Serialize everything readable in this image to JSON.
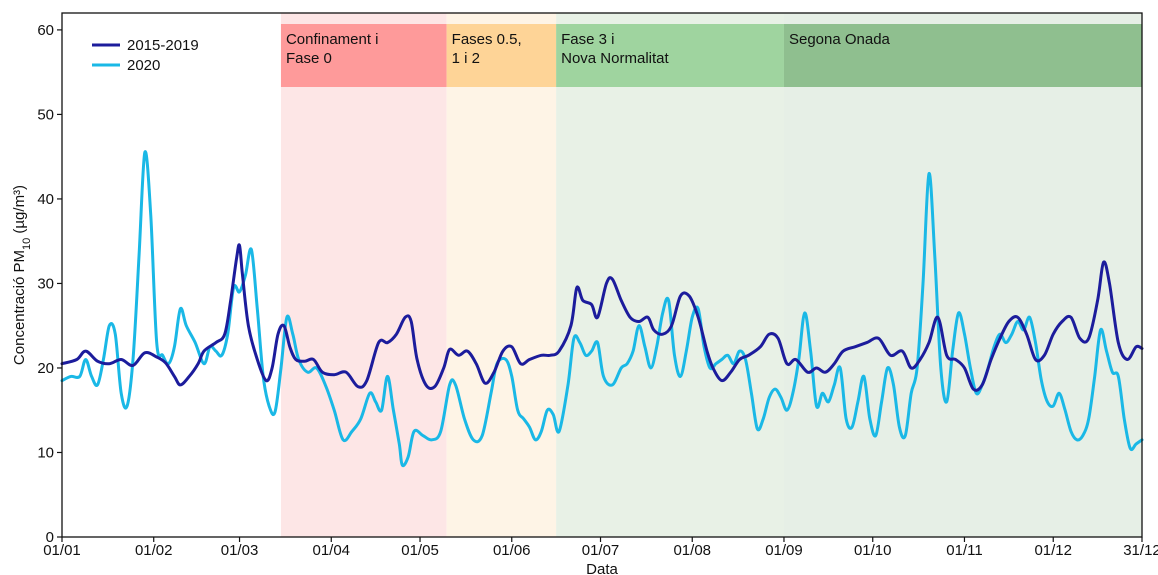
{
  "chart_data": {
    "type": "line",
    "title": "",
    "xlabel": "Data",
    "ylabel_main": "Concentració PM",
    "ylabel_sub": "10",
    "ylabel_unit": " (µg/m³)",
    "xlim": [
      0,
      365
    ],
    "ylim": [
      0,
      62
    ],
    "x_ticks": [
      {
        "day": 0,
        "label": "01/01"
      },
      {
        "day": 31,
        "label": "01/02"
      },
      {
        "day": 60,
        "label": "01/03"
      },
      {
        "day": 91,
        "label": "01/04"
      },
      {
        "day": 121,
        "label": "01/05"
      },
      {
        "day": 152,
        "label": "01/06"
      },
      {
        "day": 182,
        "label": "01/07"
      },
      {
        "day": 213,
        "label": "01/08"
      },
      {
        "day": 244,
        "label": "01/09"
      },
      {
        "day": 274,
        "label": "01/10"
      },
      {
        "day": 305,
        "label": "01/11"
      },
      {
        "day": 335,
        "label": "01/12"
      },
      {
        "day": 365,
        "label": "31/12"
      }
    ],
    "y_ticks": [
      0,
      10,
      20,
      30,
      40,
      50,
      60
    ],
    "legend_position": "top-left",
    "phases": [
      {
        "label_lines": [
          "Confinament i",
          "Fase 0"
        ],
        "start": 74,
        "end": 130,
        "band_color": "#fe9a9a",
        "fill_color": "#fde6e6"
      },
      {
        "label_lines": [
          "Fases 0.5,",
          "1 i 2"
        ],
        "start": 130,
        "end": 167,
        "band_color": "#fed497",
        "fill_color": "#fef4e6"
      },
      {
        "label_lines": [
          "Fase 3 i",
          "Nova Normalitat"
        ],
        "start": 167,
        "end": 244,
        "band_color": "#9fd49f",
        "fill_color": "#e8f1e6"
      },
      {
        "label_lines": [
          "Segona Onada"
        ],
        "start": 244,
        "end": 365,
        "band_color": "#8fbf8f",
        "fill_color": "#e6efe6"
      }
    ],
    "series": [
      {
        "name": "2015-2019",
        "color": "#1c1c9c",
        "points": [
          [
            0,
            20.5
          ],
          [
            5,
            21
          ],
          [
            8,
            22
          ],
          [
            12,
            20.8
          ],
          [
            16,
            20.5
          ],
          [
            20,
            21
          ],
          [
            24,
            20.3
          ],
          [
            28,
            21.8
          ],
          [
            32,
            21.3
          ],
          [
            35,
            20.6
          ],
          [
            38,
            19
          ],
          [
            40,
            18
          ],
          [
            43,
            19
          ],
          [
            46,
            20.5
          ],
          [
            48,
            22
          ],
          [
            52,
            23
          ],
          [
            55,
            24
          ],
          [
            57,
            28
          ],
          [
            59,
            33
          ],
          [
            60,
            34.5
          ],
          [
            61,
            31
          ],
          [
            63,
            25
          ],
          [
            66,
            21
          ],
          [
            69,
            18.5
          ],
          [
            71,
            20
          ],
          [
            73,
            24
          ],
          [
            75,
            25
          ],
          [
            77,
            22.5
          ],
          [
            79,
            21
          ],
          [
            82,
            20.8
          ],
          [
            85,
            21
          ],
          [
            88,
            19.5
          ],
          [
            92,
            19.2
          ],
          [
            96,
            19.5
          ],
          [
            100,
            17.8
          ],
          [
            103,
            18.5
          ],
          [
            107,
            23
          ],
          [
            110,
            23
          ],
          [
            113,
            24
          ],
          [
            116,
            26
          ],
          [
            118,
            25.5
          ],
          [
            120,
            21
          ],
          [
            123,
            18
          ],
          [
            126,
            17.8
          ],
          [
            129,
            20
          ],
          [
            131,
            22.2
          ],
          [
            134,
            21.5
          ],
          [
            137,
            22
          ],
          [
            140,
            20.5
          ],
          [
            143,
            18.2
          ],
          [
            146,
            19.5
          ],
          [
            149,
            22
          ],
          [
            152,
            22.5
          ],
          [
            155,
            20.5
          ],
          [
            158,
            21
          ],
          [
            162,
            21.5
          ],
          [
            165,
            21.5
          ],
          [
            168,
            22
          ],
          [
            172,
            25
          ],
          [
            174,
            29.5
          ],
          [
            176,
            28
          ],
          [
            179,
            27.5
          ],
          [
            181,
            26
          ],
          [
            184,
            30
          ],
          [
            186,
            30.5
          ],
          [
            189,
            28
          ],
          [
            192,
            26
          ],
          [
            195,
            25.5
          ],
          [
            198,
            26
          ],
          [
            200,
            24.5
          ],
          [
            203,
            24
          ],
          [
            206,
            25
          ],
          [
            209,
            28.5
          ],
          [
            212,
            28.5
          ],
          [
            215,
            26
          ],
          [
            218,
            22
          ],
          [
            220,
            20
          ],
          [
            223,
            18.5
          ],
          [
            226,
            19.5
          ],
          [
            229,
            21
          ],
          [
            232,
            21.5
          ],
          [
            236,
            22.5
          ],
          [
            239,
            24
          ],
          [
            242,
            23.5
          ],
          [
            245,
            20.5
          ],
          [
            248,
            21
          ],
          [
            252,
            19.5
          ],
          [
            255,
            20
          ],
          [
            258,
            19.5
          ],
          [
            261,
            20.5
          ],
          [
            264,
            22
          ],
          [
            268,
            22.5
          ],
          [
            272,
            23
          ],
          [
            276,
            23.5
          ],
          [
            280,
            21.5
          ],
          [
            284,
            22
          ],
          [
            287,
            20
          ],
          [
            290,
            21
          ],
          [
            293,
            23
          ],
          [
            296,
            26
          ],
          [
            299,
            21.5
          ],
          [
            302,
            21
          ],
          [
            305,
            20
          ],
          [
            308,
            17.5
          ],
          [
            311,
            18
          ],
          [
            314,
            21
          ],
          [
            317,
            23.5
          ],
          [
            320,
            25.5
          ],
          [
            323,
            26
          ],
          [
            326,
            24
          ],
          [
            329,
            21
          ],
          [
            332,
            21.5
          ],
          [
            335,
            24
          ],
          [
            338,
            25.5
          ],
          [
            341,
            26
          ],
          [
            344,
            23.5
          ],
          [
            347,
            23.5
          ],
          [
            350,
            28
          ],
          [
            352,
            32.5
          ],
          [
            354,
            30
          ],
          [
            357,
            23
          ],
          [
            360,
            21
          ],
          [
            363,
            22.5
          ],
          [
            365,
            22.3
          ]
        ]
      },
      {
        "name": "2020",
        "color": "#1ab8e6",
        "points": [
          [
            0,
            18.5
          ],
          [
            3,
            19
          ],
          [
            6,
            19
          ],
          [
            8,
            21
          ],
          [
            10,
            19
          ],
          [
            12,
            18
          ],
          [
            14,
            21
          ],
          [
            16,
            25
          ],
          [
            18,
            24
          ],
          [
            20,
            17
          ],
          [
            22,
            15.5
          ],
          [
            24,
            21
          ],
          [
            26,
            33
          ],
          [
            28,
            45.5
          ],
          [
            30,
            38
          ],
          [
            32,
            23
          ],
          [
            34,
            21.5
          ],
          [
            36,
            20.5
          ],
          [
            38,
            22.5
          ],
          [
            40,
            27
          ],
          [
            42,
            25
          ],
          [
            45,
            23
          ],
          [
            48,
            20.5
          ],
          [
            50,
            22.5
          ],
          [
            52,
            22
          ],
          [
            54,
            21.5
          ],
          [
            56,
            24
          ],
          [
            58,
            29.5
          ],
          [
            60,
            29
          ],
          [
            62,
            31
          ],
          [
            64,
            34
          ],
          [
            66,
            27
          ],
          [
            68,
            19
          ],
          [
            70,
            15.5
          ],
          [
            72,
            14.8
          ],
          [
            74,
            20
          ],
          [
            76,
            26
          ],
          [
            78,
            24
          ],
          [
            80,
            21
          ],
          [
            83,
            19.5
          ],
          [
            86,
            20
          ],
          [
            89,
            18
          ],
          [
            92,
            15
          ],
          [
            95,
            11.5
          ],
          [
            98,
            12.5
          ],
          [
            101,
            14
          ],
          [
            104,
            17
          ],
          [
            106,
            16
          ],
          [
            108,
            15
          ],
          [
            110,
            19
          ],
          [
            112,
            15
          ],
          [
            114,
            11
          ],
          [
            115,
            8.5
          ],
          [
            117,
            9.5
          ],
          [
            119,
            12.5
          ],
          [
            122,
            12
          ],
          [
            125,
            11.5
          ],
          [
            128,
            12.5
          ],
          [
            131,
            18
          ],
          [
            133,
            18
          ],
          [
            136,
            14
          ],
          [
            139,
            11.5
          ],
          [
            142,
            12
          ],
          [
            145,
            17
          ],
          [
            147,
            20.5
          ],
          [
            150,
            21
          ],
          [
            152,
            19
          ],
          [
            154,
            15
          ],
          [
            156,
            14
          ],
          [
            158,
            13
          ],
          [
            160,
            11.5
          ],
          [
            162,
            12.5
          ],
          [
            164,
            15
          ],
          [
            166,
            14.5
          ],
          [
            168,
            12.5
          ],
          [
            171,
            18
          ],
          [
            173,
            23.5
          ],
          [
            175,
            23
          ],
          [
            177,
            21.5
          ],
          [
            179,
            22
          ],
          [
            181,
            23
          ],
          [
            183,
            19
          ],
          [
            186,
            18
          ],
          [
            189,
            20
          ],
          [
            191,
            20.5
          ],
          [
            193,
            22
          ],
          [
            195,
            25
          ],
          [
            197,
            22.5
          ],
          [
            199,
            20
          ],
          [
            201,
            22.5
          ],
          [
            203,
            26.5
          ],
          [
            205,
            28
          ],
          [
            207,
            21.5
          ],
          [
            209,
            19
          ],
          [
            211,
            22
          ],
          [
            213,
            26
          ],
          [
            215,
            27
          ],
          [
            217,
            22.5
          ],
          [
            219,
            20
          ],
          [
            221,
            20.5
          ],
          [
            223,
            21
          ],
          [
            225,
            21.5
          ],
          [
            227,
            20.5
          ],
          [
            229,
            22
          ],
          [
            231,
            21
          ],
          [
            233,
            17
          ],
          [
            235,
            12.8
          ],
          [
            237,
            14
          ],
          [
            239,
            16.5
          ],
          [
            241,
            17.5
          ],
          [
            243,
            16.5
          ],
          [
            245,
            15
          ],
          [
            247,
            17
          ],
          [
            249,
            21
          ],
          [
            251,
            26.5
          ],
          [
            253,
            22
          ],
          [
            255,
            15.5
          ],
          [
            257,
            17
          ],
          [
            259,
            16
          ],
          [
            261,
            18
          ],
          [
            263,
            20
          ],
          [
            265,
            14
          ],
          [
            267,
            13
          ],
          [
            269,
            16
          ],
          [
            271,
            19
          ],
          [
            273,
            14
          ],
          [
            275,
            12
          ],
          [
            277,
            16
          ],
          [
            279,
            20
          ],
          [
            281,
            18
          ],
          [
            283,
            13
          ],
          [
            285,
            12
          ],
          [
            287,
            17
          ],
          [
            289,
            20
          ],
          [
            291,
            30
          ],
          [
            293,
            43
          ],
          [
            295,
            33
          ],
          [
            297,
            20
          ],
          [
            299,
            16
          ],
          [
            301,
            22
          ],
          [
            303,
            26.5
          ],
          [
            305,
            24
          ],
          [
            307,
            20
          ],
          [
            309,
            17
          ],
          [
            311,
            18
          ],
          [
            313,
            20
          ],
          [
            315,
            22.5
          ],
          [
            317,
            24
          ],
          [
            319,
            23
          ],
          [
            321,
            24
          ],
          [
            323,
            25.5
          ],
          [
            325,
            24.5
          ],
          [
            327,
            26
          ],
          [
            329,
            23
          ],
          [
            331,
            18.5
          ],
          [
            333,
            16
          ],
          [
            335,
            15.5
          ],
          [
            337,
            17
          ],
          [
            339,
            15
          ],
          [
            341,
            12.5
          ],
          [
            343,
            11.5
          ],
          [
            345,
            12
          ],
          [
            347,
            14
          ],
          [
            349,
            19
          ],
          [
            351,
            24.5
          ],
          [
            353,
            22
          ],
          [
            355,
            19.5
          ],
          [
            357,
            19
          ],
          [
            359,
            14
          ],
          [
            361,
            10.5
          ],
          [
            363,
            11
          ],
          [
            365,
            11.5
          ]
        ]
      }
    ]
  }
}
